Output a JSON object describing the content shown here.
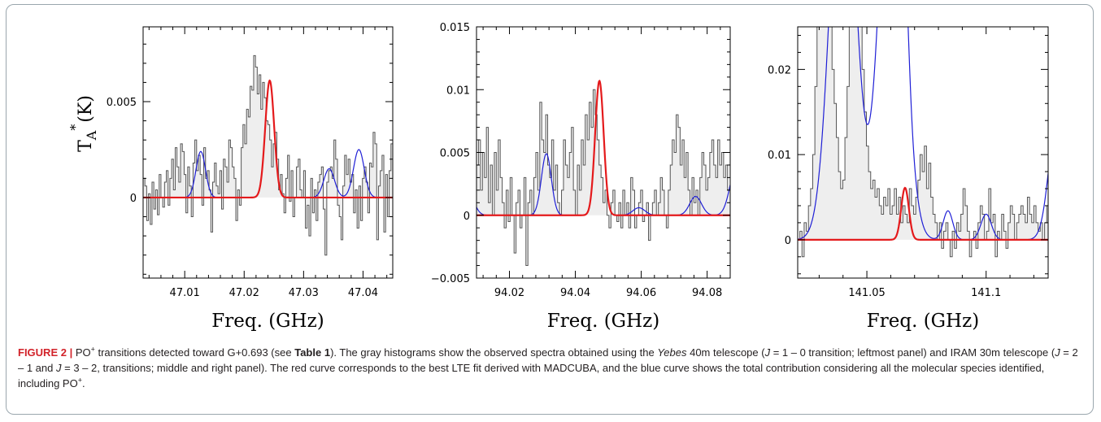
{
  "colors": {
    "observed_fill": "#eeeeee",
    "observed_line": "#555555",
    "lte_fit": "#e41a1c",
    "total_fit": "#1f1fd6",
    "figure_label": "#d2232a"
  },
  "y_axis_label": "T",
  "y_axis_sub": "A",
  "y_axis_sup": "*",
  "y_axis_unit": "(K)",
  "chart_data": [
    {
      "type": "line",
      "panel": "J = 1 – 0 (Yebes 40m)",
      "xlabel": "Freq. (GHz)",
      "xlim": [
        47.003,
        47.045
      ],
      "ylim": [
        -0.0042,
        0.0089
      ],
      "xticks": [
        47.01,
        47.02,
        47.03,
        47.04
      ],
      "xtick_labels": [
        "47.01",
        "47.02",
        "47.03",
        "47.04"
      ],
      "yticks": [
        0,
        0.005
      ],
      "ytick_labels": [
        "0",
        "0.005"
      ],
      "observed": {
        "x0": 47.003,
        "step": 0.0003,
        "y": [
          0.001,
          0.0006,
          -0.0012,
          0.0002,
          -0.0014,
          0.0008,
          -0.0006,
          0.0004,
          -0.0009,
          0.0012,
          0.0,
          -0.0005,
          0.0008,
          0.0014,
          -0.0004,
          0.001,
          0.002,
          0.0004,
          0.0026,
          0.0016,
          0.0008,
          0.0028,
          0.0024,
          0.0012,
          -0.0008,
          0.0016,
          0.0006,
          -0.001,
          0.0018,
          0.003,
          0.0014,
          0.0022,
          0.0012,
          -0.0004,
          0.0026,
          0.001,
          0.0014,
          0.0004,
          -0.0018,
          0.0008,
          0.0018,
          0.0006,
          0.0002,
          0.0014,
          -0.0006,
          0.002,
          0.0016,
          0.0008,
          0.003,
          0.0026,
          0.0016,
          0.001,
          -0.0012,
          0.0004,
          -0.0004,
          0.0026,
          0.0038,
          0.0028,
          0.0046,
          0.0042,
          0.0058,
          0.0056,
          0.0074,
          0.0068,
          0.0054,
          0.0064,
          0.0046,
          0.006,
          0.0052,
          0.004,
          0.0038,
          0.003,
          0.0016,
          0.0028,
          0.0034,
          0.002,
          0.0004,
          0.0012,
          0.0002,
          -0.0008,
          0.001,
          0.0022,
          -0.0002,
          0.0014,
          -0.001,
          0.0,
          0.0016,
          0.002,
          0.0004,
          0.0,
          0.0014,
          -0.0016,
          -0.0004,
          -0.002,
          0.001,
          -0.0008,
          0.0004,
          -0.0012,
          0.0008,
          0.0012,
          0.0016,
          -0.0006,
          -0.003,
          0.0008,
          0.0014,
          0.0016,
          0.001,
          0.003,
          0.002,
          -0.0004,
          -0.001,
          -0.0022,
          0.0006,
          0.0022,
          0.0012,
          0.002,
          0.0008,
          0.0012,
          -0.0008,
          0.0004,
          -0.0016,
          0.0006,
          -0.0012,
          0.001,
          0.0016,
          0.0008,
          -0.0008,
          0.0018,
          0.0016,
          0.0034,
          0.0028,
          -0.0022,
          0.0006,
          0.0014,
          0.0022,
          -0.0018,
          0.0012,
          -0.001,
          0.0014,
          0.0028
        ]
      },
      "series": [
        {
          "name": "total",
          "color": "#1f1fd6",
          "baseline": 0,
          "components": [
            {
              "center": 47.0127,
              "amp": 0.0024,
              "sigma": 0.0008
            },
            {
              "center": 47.0243,
              "amp": 0.0061,
              "sigma": 0.00075
            },
            {
              "center": 47.0343,
              "amp": 0.0015,
              "sigma": 0.0009
            },
            {
              "center": 47.0393,
              "amp": 0.0025,
              "sigma": 0.0009
            }
          ]
        },
        {
          "name": "lte",
          "color": "#e41a1c",
          "baseline": 0,
          "components": [
            {
              "center": 47.0243,
              "amp": 0.0061,
              "sigma": 0.00075
            }
          ]
        }
      ]
    },
    {
      "type": "line",
      "panel": "J = 2 – 1 (IRAM 30m)",
      "xlabel": "Freq. (GHz)",
      "xlim": [
        94.01,
        94.087
      ],
      "ylim": [
        -0.005,
        0.015
      ],
      "xticks": [
        94.02,
        94.04,
        94.06,
        94.08
      ],
      "xtick_labels": [
        "94.02",
        "94.04",
        "94.06",
        "94.08"
      ],
      "yticks": [
        -0.005,
        0,
        0.005,
        0.01,
        0.015
      ],
      "ytick_labels": [
        "−0.005",
        "0",
        "0.005",
        "0.01",
        "0.015"
      ],
      "observed": {
        "x0": 94.01,
        "step": 0.0006,
        "y": [
          0.004,
          0.006,
          0.002,
          0.005,
          0.003,
          0.007,
          0.001,
          0.004,
          0.0,
          0.005,
          0.002,
          0.006,
          0.003,
          0.001,
          -0.001,
          0.002,
          -0.0005,
          0.003,
          0.0,
          -0.003,
          0.001,
          0.002,
          -0.001,
          0.0,
          0.003,
          -0.004,
          0.001,
          0.002,
          0.0,
          0.003,
          0.005,
          0.002,
          0.009,
          0.006,
          0.005,
          0.008,
          0.004,
          0.003,
          0.006,
          0.002,
          0.004,
          0.001,
          0.0,
          0.002,
          0.006,
          0.004,
          0.003,
          0.005,
          0.007,
          0.002,
          0.0,
          0.004,
          0.002,
          0.006,
          0.004,
          0.008,
          0.006,
          0.009,
          0.007,
          0.01,
          0.008,
          0.006,
          0.004,
          0.003,
          0.001,
          0.002,
          0.0,
          -0.001,
          0.001,
          0.002,
          0.0,
          -0.0005,
          0.001,
          -0.001,
          0.002,
          0.0,
          0.001,
          -0.001,
          0.003,
          0.002,
          -0.001,
          0.0,
          0.001,
          0.002,
          -0.0005,
          0.0,
          0.001,
          -0.002,
          0.0,
          0.001,
          0.002,
          0.0,
          0.001,
          0.003,
          0.002,
          0.0,
          -0.001,
          0.002,
          0.004,
          0.006,
          0.005,
          0.008,
          0.007,
          0.004,
          0.006,
          0.003,
          0.005,
          0.002,
          0.0,
          0.003,
          0.001,
          0.002,
          0.0,
          0.003,
          0.005,
          0.004,
          0.002,
          0.003,
          0.005,
          0.006,
          0.004,
          0.003,
          0.006,
          0.004,
          0.005,
          0.003,
          0.004,
          0.002
        ]
      },
      "series": [
        {
          "name": "total",
          "color": "#1f1fd6",
          "baseline": 0,
          "components": [
            {
              "center": 94.0065,
              "amp": 0.003,
              "sigma": 0.002
            },
            {
              "center": 94.0312,
              "amp": 0.0049,
              "sigma": 0.0015
            },
            {
              "center": 94.0473,
              "amp": 0.0107,
              "sigma": 0.0013
            },
            {
              "center": 94.0593,
              "amp": 0.0006,
              "sigma": 0.0018
            },
            {
              "center": 94.0765,
              "amp": 0.0015,
              "sigma": 0.0018
            },
            {
              "center": 94.089,
              "amp": 0.004,
              "sigma": 0.002
            }
          ]
        },
        {
          "name": "lte",
          "color": "#e41a1c",
          "baseline": 0,
          "components": [
            {
              "center": 94.0473,
              "amp": 0.0107,
              "sigma": 0.0013
            }
          ]
        }
      ]
    },
    {
      "type": "line",
      "panel": "J = 3 – 2 (IRAM 30m)",
      "xlabel": "Freq. (GHz)",
      "xlim": [
        141.021,
        141.126
      ],
      "ylim": [
        -0.0045,
        0.025
      ],
      "xticks": [
        141.05,
        141.1
      ],
      "xtick_labels": [
        "141.05",
        "141.1"
      ],
      "yticks": [
        0,
        0.01,
        0.02
      ],
      "ytick_labels": [
        "0",
        "0.01",
        "0.02"
      ],
      "observed": {
        "x0": 141.021,
        "step": 0.0009,
        "y": [
          0.0,
          0.001,
          -0.002,
          0.002,
          0.001,
          0.004,
          0.006,
          0.01,
          0.018,
          0.026,
          0.033,
          0.04,
          0.038,
          0.034,
          0.03,
          0.025,
          0.02,
          0.016,
          0.012,
          0.008,
          0.006,
          0.007,
          0.012,
          0.018,
          0.026,
          0.034,
          0.04,
          0.038,
          0.033,
          0.026,
          0.02,
          0.015,
          0.011,
          0.008,
          0.006,
          0.007,
          0.005,
          0.006,
          0.004,
          0.003,
          0.005,
          0.004,
          0.006,
          0.003,
          0.004,
          0.006,
          0.003,
          0.005,
          0.002,
          0.004,
          0.003,
          0.002,
          0.006,
          0.004,
          0.003,
          0.005,
          0.007,
          0.01,
          0.008,
          0.011,
          0.006,
          0.009,
          0.005,
          0.003,
          0.002,
          0.0,
          0.002,
          -0.001,
          0.001,
          0.002,
          0.0,
          -0.002,
          0.001,
          -0.001,
          0.002,
          0.001,
          0.003,
          0.006,
          0.004,
          0.001,
          -0.002,
          0.0,
          0.001,
          -0.001,
          0.002,
          0.004,
          0.003,
          0.0,
          0.001,
          0.006,
          0.002,
          0.003,
          -0.002,
          0.001,
          0.0,
          0.003,
          0.001,
          -0.001,
          0.002,
          0.004,
          0.003,
          0.0,
          0.002,
          0.003,
          0.004,
          0.003,
          0.002,
          0.005,
          0.003,
          0.002,
          0.004,
          0.002,
          0.001,
          0.002,
          0.0,
          0.002,
          0.004
        ]
      },
      "series": [
        {
          "name": "total",
          "color": "#1f1fd6",
          "baseline": 0,
          "components": [
            {
              "center": 141.04,
              "amp": 0.05,
              "sigma": 0.0052
            },
            {
              "center": 141.0605,
              "amp": 0.052,
              "sigma": 0.005
            },
            {
              "center": 141.066,
              "amp": 0.0061,
              "sigma": 0.0016
            },
            {
              "center": 141.084,
              "amp": 0.0034,
              "sigma": 0.002
            },
            {
              "center": 141.1,
              "amp": 0.003,
              "sigma": 0.0022
            },
            {
              "center": 141.13,
              "amp": 0.015,
              "sigma": 0.0035
            }
          ]
        },
        {
          "name": "lte",
          "color": "#e41a1c",
          "baseline": 0,
          "components": [
            {
              "center": 141.066,
              "amp": 0.0061,
              "sigma": 0.0016
            }
          ]
        }
      ]
    }
  ],
  "caption": {
    "label": "FIGURE 2 |",
    "p1": " PO",
    "sup1": "+",
    "p2": " transitions detected toward G+0.693 (see ",
    "table_ref": "Table 1",
    "p3": "). The gray histograms show the observed spectra obtained using the ",
    "telescope": "Yebes",
    "p4": " 40m telescope (",
    "j1": "J",
    "p5": " = 1 – 0 transition; leftmost panel) and IRAM 30m telescope (",
    "j2": "J",
    "p6": " = 2 – 1 and ",
    "j3": "J",
    "p7": " = 3 – 2, transitions; middle and right panel). The red curve corresponds to the best LTE fit derived with MADCUBA, and the blue curve shows the total contribution considering all the molecular species identified, including PO",
    "sup2": "+",
    "p8": "."
  }
}
